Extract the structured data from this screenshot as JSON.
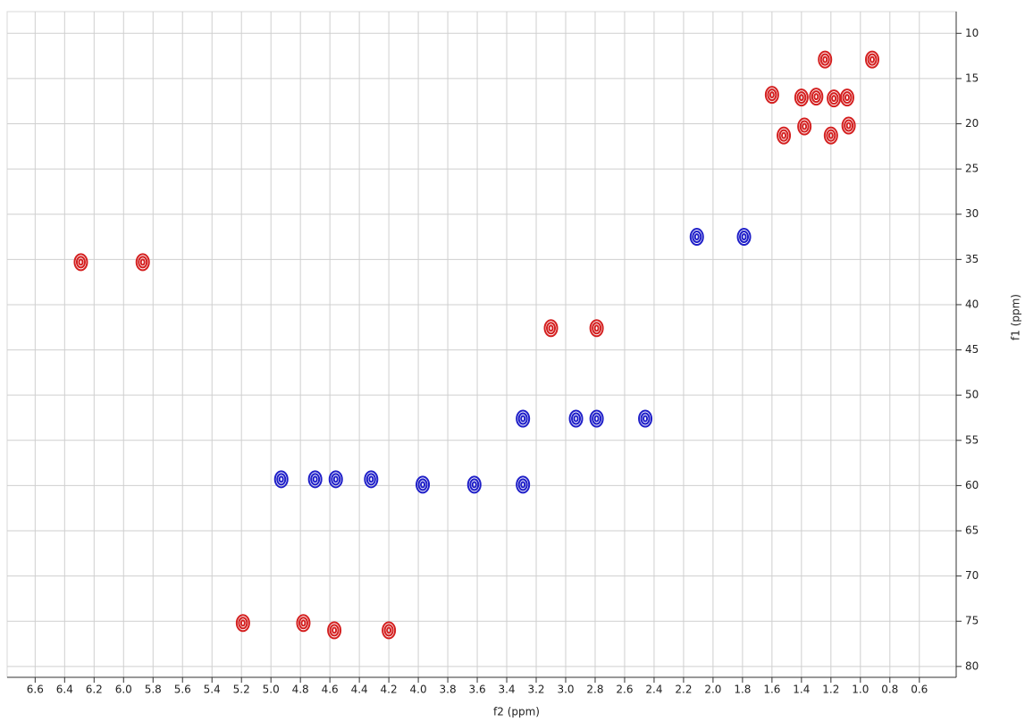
{
  "chart_data": {
    "type": "scatter",
    "x_label": "f2 (ppm)",
    "y_label": "f1 (ppm)",
    "xlim": [
      6.79,
      0.35
    ],
    "ylim": [
      7.6,
      81.2
    ],
    "xticks": [
      6.6,
      6.4,
      6.2,
      {
        "value": 6,
        "label": "6.0"
      },
      5.8,
      5.6,
      5.4,
      5.2,
      {
        "value": 5,
        "label": "5.0"
      },
      4.8,
      4.6,
      4.4,
      4.2,
      {
        "value": 4,
        "label": "4.0"
      },
      3.8,
      3.6,
      3.4,
      3.2,
      {
        "value": 3,
        "label": "3.0"
      },
      2.8,
      2.6,
      2.4,
      2.2,
      {
        "value": 2,
        "label": "2.0"
      },
      1.8,
      1.6,
      1.4,
      1.2,
      {
        "value": 1,
        "label": "1.0"
      },
      0.8,
      0.6
    ],
    "yticks": [
      10,
      15,
      20,
      25,
      30,
      35,
      40,
      45,
      50,
      55,
      60,
      65,
      70,
      75,
      80
    ],
    "grid": true,
    "series": [
      {
        "color": "#d42020",
        "x": [
          6.29,
          5.87,
          3.1,
          2.79,
          5.19,
          4.78,
          4.57,
          4.2,
          1.24,
          0.92,
          1.4,
          1.09,
          1.52,
          1.2,
          1.6,
          1.3,
          1.18,
          1.38,
          1.08
        ],
        "values": [
          35.3,
          35.3,
          42.6,
          42.6,
          75.2,
          75.2,
          76.0,
          76.0,
          12.9,
          12.9,
          17.1,
          17.1,
          21.3,
          21.3,
          16.8,
          17.0,
          17.2,
          20.3,
          20.2
        ]
      },
      {
        "color": "#1f1fc8",
        "x": [
          2.11,
          1.79,
          3.29,
          2.93,
          2.79,
          2.46,
          4.93,
          4.7,
          4.56,
          4.32,
          3.97,
          3.62,
          3.29
        ],
        "values": [
          32.5,
          32.5,
          52.6,
          52.6,
          52.6,
          52.6,
          59.3,
          59.3,
          59.3,
          59.3,
          59.9,
          59.9,
          59.9
        ]
      }
    ]
  }
}
